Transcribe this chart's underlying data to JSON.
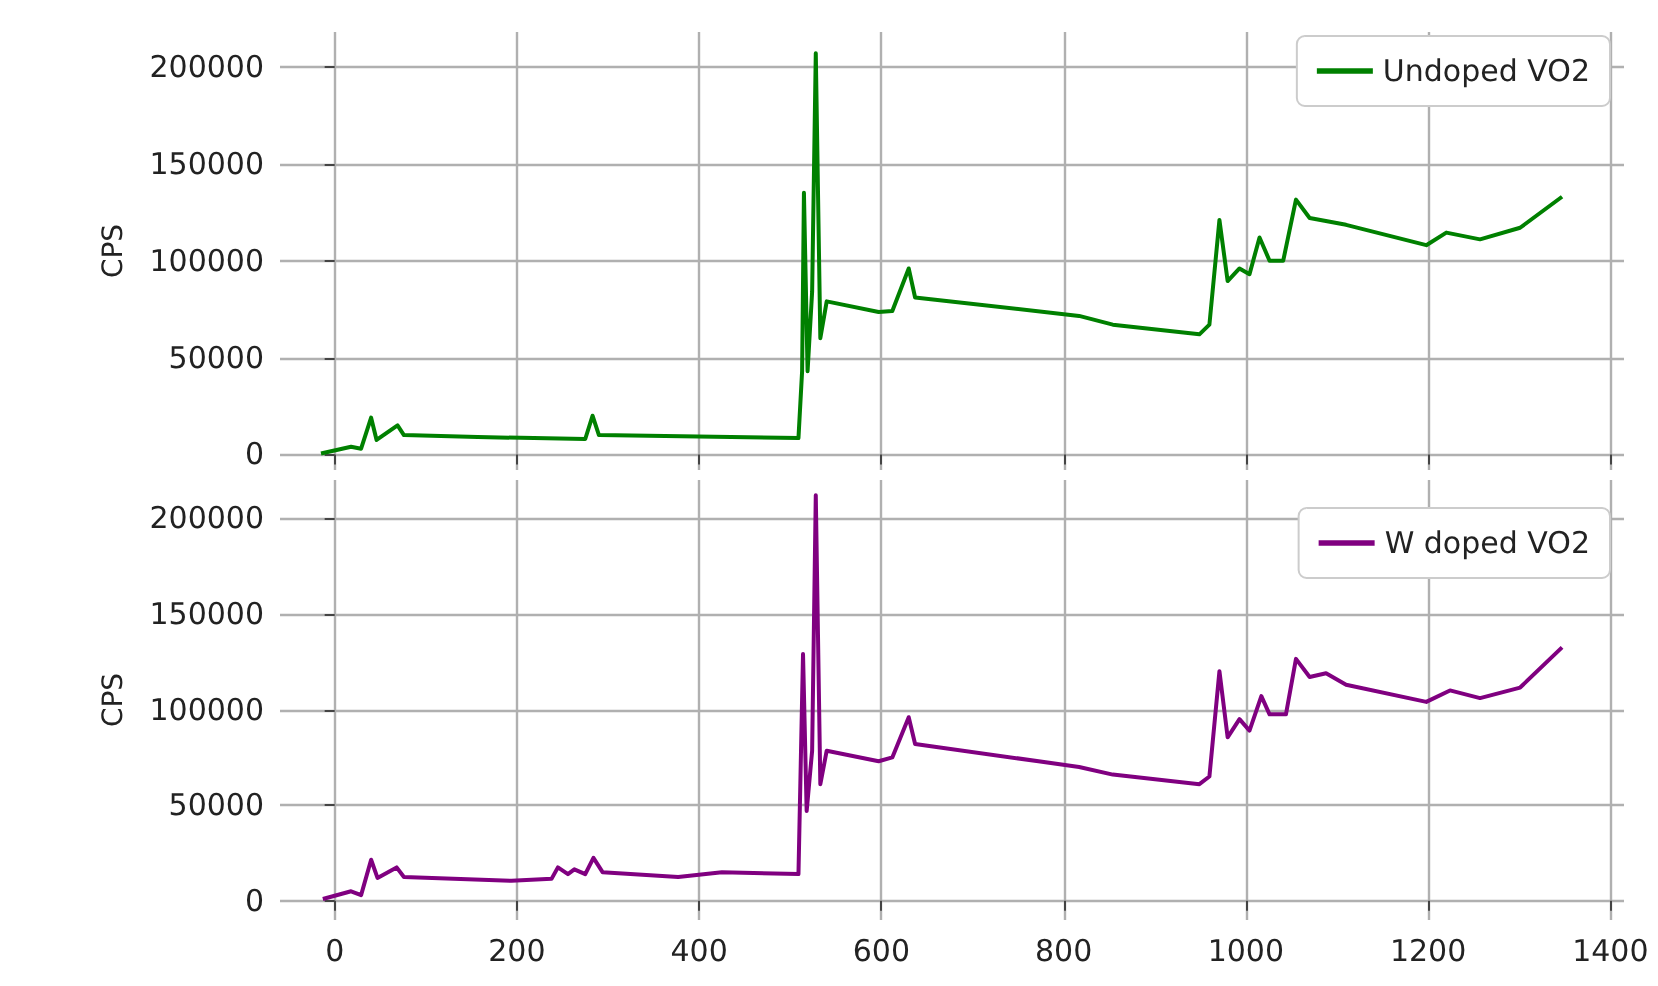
{
  "chart_data": [
    {
      "type": "line",
      "ylabel": "CPS",
      "xlim": [
        -60,
        1415
      ],
      "ylim": [
        -8000,
        218000
      ],
      "xticks": [
        0,
        200,
        400,
        600,
        800,
        1000,
        1200,
        1400
      ],
      "yticks": [
        0,
        50000,
        100000,
        150000,
        200000
      ],
      "grid": true,
      "legend": "top right",
      "tick_labels": "y",
      "line_style": "solid",
      "series": [
        {
          "name": "Undoped VO2",
          "color": "#008000",
          "x": [
            -15,
            18,
            29,
            40,
            46,
            69,
            76,
            157,
            275,
            283,
            290,
            509,
            513,
            515,
            519,
            524,
            528,
            533,
            540,
            597,
            612,
            630,
            637,
            817,
            854,
            949,
            960,
            971,
            980,
            993,
            1004,
            1015,
            1026,
            1041,
            1055,
            1070,
            1110,
            1198,
            1220,
            1257,
            1301,
            1347
          ],
          "values": [
            500,
            4000,
            3000,
            19000,
            7500,
            15000,
            10000,
            9000,
            8000,
            20000,
            10000,
            8500,
            43000,
            135000,
            43000,
            84000,
            207000,
            60000,
            79000,
            73500,
            74000,
            96000,
            81000,
            71500,
            67000,
            62000,
            67000,
            121000,
            89500,
            96000,
            93000,
            112000,
            100000,
            100000,
            131500,
            122000,
            118500,
            108000,
            114500,
            111000,
            117000,
            133000
          ]
        }
      ]
    },
    {
      "type": "line",
      "ylabel": "CPS",
      "xlim": [
        -60,
        1415
      ],
      "ylim": [
        -10000,
        220000
      ],
      "xticks": [
        0,
        200,
        400,
        600,
        800,
        1000,
        1200,
        1400
      ],
      "yticks": [
        0,
        50000,
        100000,
        150000,
        200000
      ],
      "grid": true,
      "legend": "top right",
      "line_style": "solid",
      "series": [
        {
          "name": "W doped VO2",
          "color": "#800080",
          "x": [
            -13,
            18,
            29,
            40,
            47,
            68,
            76,
            194,
            238,
            245,
            256,
            263,
            275,
            284,
            294,
            377,
            425,
            509,
            514,
            518,
            524,
            528,
            533,
            540,
            597,
            612,
            630,
            637,
            817,
            854,
            949,
            960,
            971,
            980,
            993,
            1004,
            1017,
            1026,
            1044,
            1055,
            1070,
            1088,
            1110,
            1198,
            1224,
            1257,
            1301,
            1347
          ],
          "values": [
            1000,
            5000,
            3000,
            21500,
            12000,
            17500,
            12500,
            10500,
            11500,
            17500,
            14000,
            16500,
            14000,
            22500,
            15000,
            12500,
            15000,
            14000,
            129000,
            47000,
            78500,
            212000,
            61000,
            78500,
            73000,
            75000,
            96000,
            82000,
            70000,
            66000,
            61000,
            65000,
            120000,
            85500,
            95000,
            89000,
            107000,
            97500,
            97500,
            126500,
            117000,
            119000,
            113000,
            104000,
            110000,
            106000,
            111500,
            132500
          ]
        }
      ]
    }
  ]
}
